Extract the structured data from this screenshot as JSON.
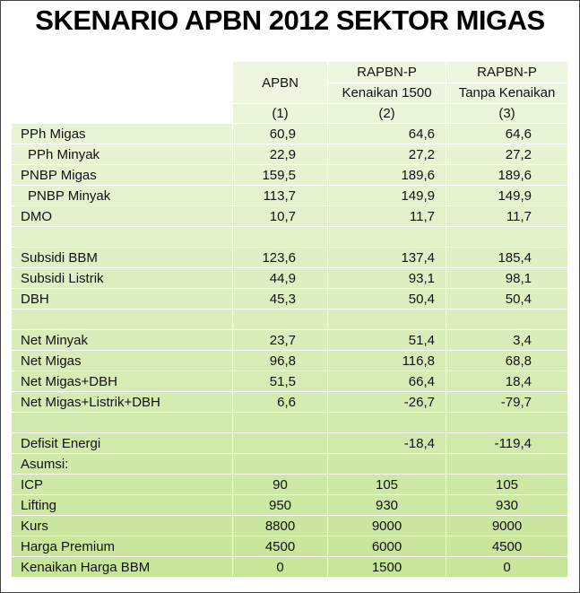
{
  "title": "SKENARIO APBN 2012 SEKTOR MIGAS",
  "table": {
    "header": {
      "columns": [
        [
          "APBN"
        ],
        [
          "RAPBN-P",
          "Kenaikan 1500"
        ],
        [
          "RAPBN-P",
          "Tanpa Kenaikan"
        ]
      ],
      "numbers": [
        "(1)",
        "(2)",
        "(3)"
      ]
    },
    "sections": [
      [
        {
          "label": "PPh Migas",
          "values": [
            "60,9",
            "64,6",
            "64,6"
          ]
        },
        {
          "label": "PPh Minyak",
          "values": [
            "22,9",
            "27,2",
            "27,2"
          ],
          "indent": true
        },
        {
          "label": "PNBP Migas",
          "values": [
            "159,5",
            "189,6",
            "189,6"
          ]
        },
        {
          "label": "PNBP Minyak",
          "values": [
            "113,7",
            "149,9",
            "149,9"
          ],
          "indent": true
        },
        {
          "label": "DMO",
          "values": [
            "10,7",
            "11,7",
            "11,7"
          ]
        }
      ],
      [
        {
          "label": "Subsidi BBM",
          "values": [
            "123,6",
            "137,4",
            "185,4"
          ]
        },
        {
          "label": "Subsidi Listrik",
          "values": [
            "44,9",
            "93,1",
            "98,1"
          ]
        },
        {
          "label": "DBH",
          "values": [
            "45,3",
            "50,4",
            "50,4"
          ]
        }
      ],
      [
        {
          "label": "Net Minyak",
          "values": [
            "23,7",
            "51,4",
            "3,4"
          ]
        },
        {
          "label": "Net Migas",
          "values": [
            "96,8",
            "116,8",
            "68,8"
          ]
        },
        {
          "label": "Net Migas+DBH",
          "values": [
            "51,5",
            "66,4",
            "18,4"
          ]
        },
        {
          "label": "Net Migas+Listrik+DBH",
          "values": [
            "6,6",
            "-26,7",
            "-79,7"
          ]
        }
      ],
      [
        {
          "label": "Defisit Energi",
          "values": [
            null,
            "-18,4",
            "-119,4"
          ]
        },
        {
          "label": "Asumsi:",
          "values": [
            null,
            null,
            null
          ]
        },
        {
          "label": "ICP",
          "values": [
            "90",
            "105",
            "105"
          ],
          "centered": true
        },
        {
          "label": "Lifting",
          "values": [
            "950",
            "930",
            "930"
          ],
          "centered": true
        },
        {
          "label": "Kurs",
          "values": [
            "8800",
            "9000",
            "9000"
          ],
          "centered": true
        },
        {
          "label": "Harga Premium",
          "values": [
            "4500",
            "6000",
            "4500"
          ],
          "centered": true
        },
        {
          "label": "Kenaikan Harga BBM",
          "values": [
            "0",
            "1500",
            "0"
          ],
          "centered": true
        }
      ]
    ]
  }
}
